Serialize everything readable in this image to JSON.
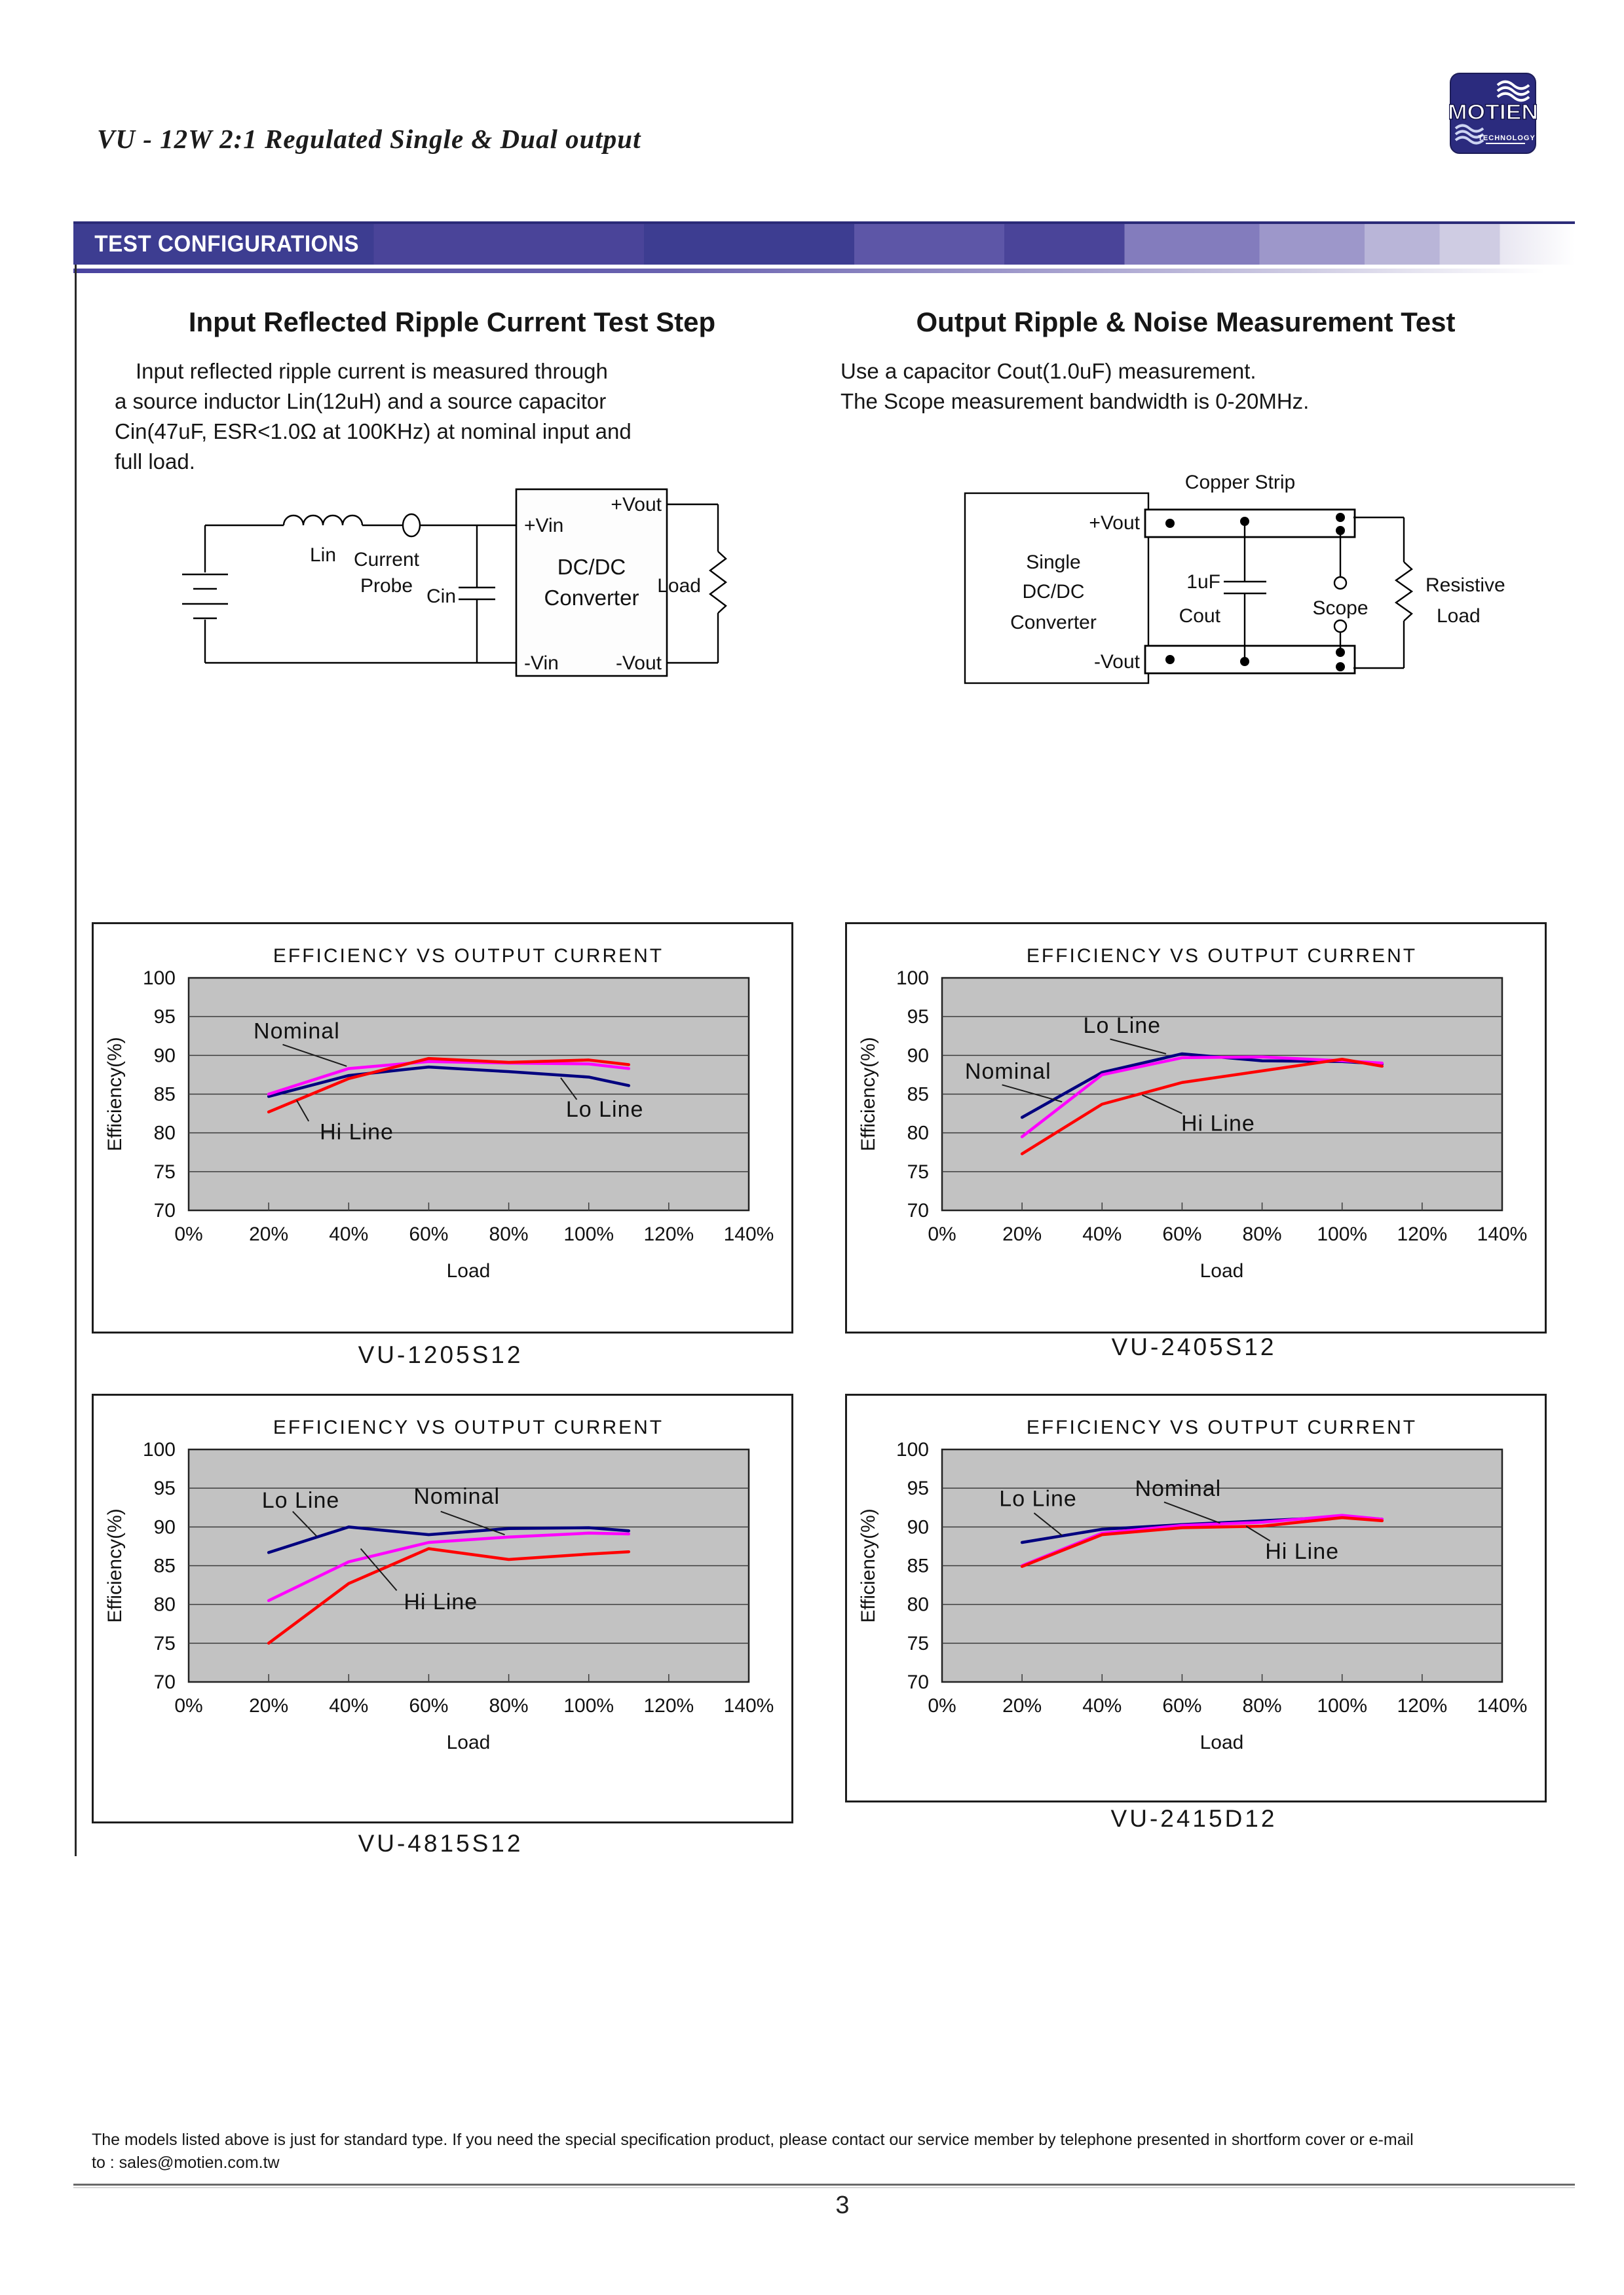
{
  "page": {
    "title": "VU - 12W 2:1 Regulated Single & Dual output",
    "page_number": "3"
  },
  "logo": {
    "brand": "MOTIEN",
    "sub": "TECHNOLOGY"
  },
  "banner": {
    "label": "TEST CONFIGURATIONS"
  },
  "sections": {
    "left": {
      "heading": "Input Reflected Ripple Current Test Step",
      "body_lines": [
        "Input reflected ripple current is measured through",
        "a source inductor Lin(12uH) and a source capacitor",
        "Cin(47uF, ESR<1.0Ω at 100KHz) at nominal input and",
        "full load."
      ]
    },
    "right": {
      "heading": "Output Ripple & Noise Measurement Test",
      "body_lines": [
        "Use a capacitor Cout(1.0uF) measurement.",
        "The Scope measurement bandwidth is 0-20MHz."
      ]
    }
  },
  "diagrams": {
    "input_ripple": {
      "inductor_label": "Lin",
      "probe_label_line1": "Current",
      "probe_label_line2": "Probe",
      "cap_label": "Cin",
      "box_line1": "DC/DC",
      "box_line2": "Converter",
      "vin_pos": "+Vin",
      "vin_neg": "-Vin",
      "vout_pos": "+Vout",
      "vout_neg": "-Vout",
      "load_label": "Load"
    },
    "output_noise": {
      "box_line1": "Single",
      "box_line2": "DC/DC",
      "box_line3": "Converter",
      "vout_pos": "+Vout",
      "vout_neg": "-Vout",
      "copper_strip": "Copper Strip",
      "cap_value": "1uF",
      "cap_name": "Cout",
      "scope": "Scope",
      "load_line1": "Resistive",
      "load_line2": "Load"
    }
  },
  "footer": {
    "line1": "The models listed above is just for standard type. If you need the special specification product, please contact our service member by telephone presented in shortform cover or e-mail",
    "line2": "to : sales@motien.com.tw"
  },
  "chart_data": [
    {
      "type": "line",
      "model": "VU-1205S12",
      "title": "EFFICIENCY VS OUTPUT CURRENT",
      "xlabel": "Load",
      "ylabel": "Efficiency(%)",
      "xlim": [
        0,
        140
      ],
      "ylim": [
        70,
        100
      ],
      "grid": "horizontal",
      "legend_position": "inline-annotations",
      "x_ticks": [
        "0%",
        "20%",
        "40%",
        "60%",
        "80%",
        "100%",
        "120%",
        "140%"
      ],
      "y_ticks": [
        100,
        95,
        90,
        85,
        80,
        75,
        70
      ],
      "x": [
        20,
        40,
        60,
        80,
        100,
        110
      ],
      "series": [
        {
          "name": "Lo Line",
          "color": "#00007f",
          "values": [
            84.7,
            87.4,
            88.5,
            87.9,
            87.2,
            86.1
          ]
        },
        {
          "name": "Nominal",
          "color": "#ff00ff",
          "values": [
            85.0,
            88.3,
            89.2,
            89.0,
            88.9,
            88.3
          ]
        },
        {
          "name": "Hi Line",
          "color": "#ff0000",
          "values": [
            82.7,
            87.0,
            89.6,
            89.1,
            89.4,
            88.8
          ]
        }
      ],
      "annotations": [
        {
          "label": "Nominal",
          "tx": 27,
          "ty": 93.2,
          "line": [
            23.5,
            91.4,
            39.5,
            88.6
          ]
        },
        {
          "label": "Hi Line",
          "tx": 42,
          "ty": 80.2,
          "line": [
            30,
            81.5,
            27,
            84.2
          ]
        },
        {
          "label": "Lo Line",
          "tx": 104,
          "ty": 83.1,
          "line": [
            97,
            84.3,
            93,
            87.1
          ]
        }
      ]
    },
    {
      "type": "line",
      "model": "VU-2405S12",
      "title": "EFFICIENCY VS OUTPUT CURRENT",
      "xlabel": "Load",
      "ylabel": "Efficiency(%)",
      "xlim": [
        0,
        140
      ],
      "ylim": [
        70,
        100
      ],
      "grid": "horizontal",
      "legend_position": "inline-annotations",
      "x_ticks": [
        "0%",
        "20%",
        "40%",
        "60%",
        "80%",
        "100%",
        "120%",
        "140%"
      ],
      "y_ticks": [
        100,
        95,
        90,
        85,
        80,
        75,
        70
      ],
      "x": [
        20,
        40,
        60,
        80,
        100,
        110
      ],
      "series": [
        {
          "name": "Lo Line",
          "color": "#00007f",
          "values": [
            82.0,
            87.8,
            90.2,
            89.3,
            89.2,
            88.9
          ]
        },
        {
          "name": "Nominal",
          "color": "#ff00ff",
          "values": [
            79.5,
            87.5,
            89.7,
            89.8,
            89.3,
            89.0
          ]
        },
        {
          "name": "Hi Line",
          "color": "#ff0000",
          "values": [
            77.3,
            83.7,
            86.5,
            88.0,
            89.5,
            88.6
          ]
        }
      ],
      "annotations": [
        {
          "label": "Lo Line",
          "tx": 45,
          "ty": 93.9,
          "line": [
            42,
            92.1,
            56,
            90.2
          ]
        },
        {
          "label": "Nominal",
          "tx": 16.5,
          "ty": 88.0,
          "line": [
            15,
            86.2,
            30,
            84.0
          ]
        },
        {
          "label": "Hi Line",
          "tx": 69,
          "ty": 81.3,
          "line": [
            60,
            82.5,
            50,
            84.9
          ]
        }
      ]
    },
    {
      "type": "line",
      "model": "VU-4815S12",
      "title": "EFFICIENCY VS OUTPUT CURRENT",
      "xlabel": "Load",
      "ylabel": "Efficiency(%)",
      "xlim": [
        0,
        140
      ],
      "ylim": [
        70,
        100
      ],
      "grid": "horizontal",
      "legend_position": "inline-annotations",
      "x_ticks": [
        "0%",
        "20%",
        "40%",
        "60%",
        "80%",
        "100%",
        "120%",
        "140%"
      ],
      "y_ticks": [
        100,
        95,
        90,
        85,
        80,
        75,
        70
      ],
      "x": [
        20,
        40,
        60,
        80,
        100,
        110
      ],
      "series": [
        {
          "name": "Lo Line",
          "color": "#00007f",
          "values": [
            86.7,
            90.0,
            89.0,
            89.8,
            89.9,
            89.5
          ]
        },
        {
          "name": "Nominal",
          "color": "#ff00ff",
          "values": [
            80.5,
            85.5,
            88.0,
            88.7,
            89.2,
            89.1
          ]
        },
        {
          "name": "Hi Line",
          "color": "#ff0000",
          "values": [
            75.0,
            82.7,
            87.2,
            85.8,
            86.5,
            86.8
          ]
        }
      ],
      "annotations": [
        {
          "label": "Lo Line",
          "tx": 28,
          "ty": 93.5,
          "line": [
            26,
            92.0,
            32,
            88.8
          ]
        },
        {
          "label": "Nominal",
          "tx": 67,
          "ty": 94.0,
          "line": [
            63,
            92.0,
            79,
            89.0
          ]
        },
        {
          "label": "Hi Line",
          "tx": 63,
          "ty": 80.4,
          "line": [
            52,
            81.8,
            43,
            87.2
          ]
        }
      ]
    },
    {
      "type": "line",
      "model": "VU-2415D12",
      "title": "EFFICIENCY VS OUTPUT CURRENT",
      "xlabel": "Load",
      "ylabel": "Efficiency(%)",
      "xlim": [
        0,
        140
      ],
      "ylim": [
        70,
        100
      ],
      "grid": "horizontal",
      "legend_position": "inline-annotations",
      "x_ticks": [
        "0%",
        "20%",
        "40%",
        "60%",
        "80%",
        "100%",
        "120%",
        "140%"
      ],
      "y_ticks": [
        100,
        95,
        90,
        85,
        80,
        75,
        70
      ],
      "x": [
        20,
        40,
        60,
        80,
        100,
        110
      ],
      "series": [
        {
          "name": "Lo Line",
          "color": "#00007f",
          "values": [
            88.0,
            89.7,
            90.3,
            90.8,
            91.3,
            91.0
          ]
        },
        {
          "name": "Nominal",
          "color": "#ff00ff",
          "values": [
            85.0,
            89.2,
            90.2,
            90.6,
            91.5,
            91.0
          ]
        },
        {
          "name": "Hi Line",
          "color": "#ff0000",
          "values": [
            84.9,
            89.0,
            89.9,
            90.1,
            91.2,
            90.8
          ]
        }
      ],
      "annotations": [
        {
          "label": "Lo Line",
          "tx": 24,
          "ty": 93.7,
          "line": [
            23,
            91.8,
            30,
            88.9
          ]
        },
        {
          "label": "Nominal",
          "tx": 59,
          "ty": 95.0,
          "line": [
            55.5,
            93.2,
            69.5,
            90.5
          ]
        },
        {
          "label": "Hi Line",
          "tx": 90,
          "ty": 86.9,
          "line": [
            82,
            88.2,
            76,
            90.1
          ]
        }
      ]
    }
  ]
}
